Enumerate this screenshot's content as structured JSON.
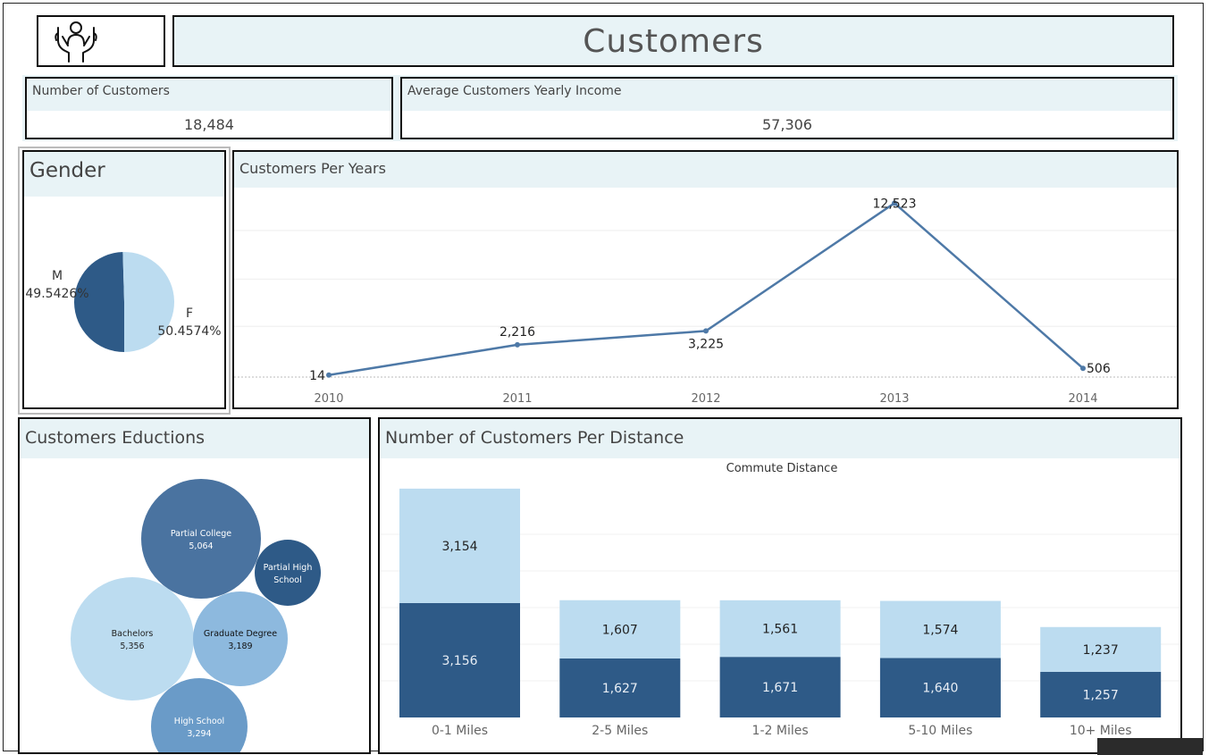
{
  "header": {
    "title": "Customers",
    "logo_icon": "hands-holding-person-icon"
  },
  "kpis": [
    {
      "label": "Number of Customers",
      "value": "18,484"
    },
    {
      "label": "Average Customers Yearly Income",
      "value": "57,306"
    }
  ],
  "panels": {
    "gender": "Gender",
    "years": "Customers Per Years",
    "education": "Customers Eductions",
    "distance": "Number of Customers Per Distance"
  },
  "colors": {
    "dark": "#2e5a87",
    "light": "#bcdcf0",
    "line": "#4e79a7",
    "header_bg": "#e8f3f6"
  },
  "chart_data": [
    {
      "type": "pie",
      "title": "Gender",
      "slices": [
        {
          "label": "M",
          "value": 49.5426,
          "display": "49.5426%",
          "color": "#2e5a87"
        },
        {
          "label": "F",
          "value": 50.4574,
          "display": "50.4574%",
          "color": "#bcdcf0"
        }
      ]
    },
    {
      "type": "line",
      "title": "Customers Per Years",
      "x": [
        "2010",
        "2011",
        "2012",
        "2013",
        "2014"
      ],
      "values": [
        14,
        2216,
        3225,
        12523,
        506
      ],
      "labels": [
        "14",
        "2,216",
        "3,225",
        "12,523",
        "506"
      ],
      "ylim": [
        0,
        13000
      ]
    },
    {
      "type": "bubble",
      "title": "Customers Eductions",
      "items": [
        {
          "label": "Partial College",
          "value": 5064,
          "display": "5,064",
          "color": "#4a73a0"
        },
        {
          "label": "Partial High School",
          "value": null,
          "display": "",
          "color": "#2e5a87"
        },
        {
          "label": "Bachelors",
          "value": 5356,
          "display": "5,356",
          "color": "#bcdcf0"
        },
        {
          "label": "Graduate Degree",
          "value": 3189,
          "display": "3,189",
          "color": "#8db9de"
        },
        {
          "label": "High School",
          "value": 3294,
          "display": "3,294",
          "color": "#6a9bc8"
        }
      ]
    },
    {
      "type": "bar",
      "stacked": true,
      "title": "Number of Customers Per Distance",
      "subtitle": "Commute Distance",
      "categories": [
        "0-1 Miles",
        "2-5 Miles",
        "1-2 Miles",
        "5-10 Miles",
        "10+ Miles"
      ],
      "series": [
        {
          "values": [
            3156,
            1627,
            1671,
            1640,
            1257
          ],
          "labels": [
            "3,156",
            "1,627",
            "1,671",
            "1,640",
            "1,257"
          ],
          "color": "#2e5a87"
        },
        {
          "values": [
            3154,
            1607,
            1561,
            1574,
            1237
          ],
          "labels": [
            "3,154",
            "1,607",
            "1,561",
            "1,574",
            "1,237"
          ],
          "color": "#bcdcf0"
        }
      ],
      "ylim": [
        0,
        6800
      ]
    }
  ]
}
